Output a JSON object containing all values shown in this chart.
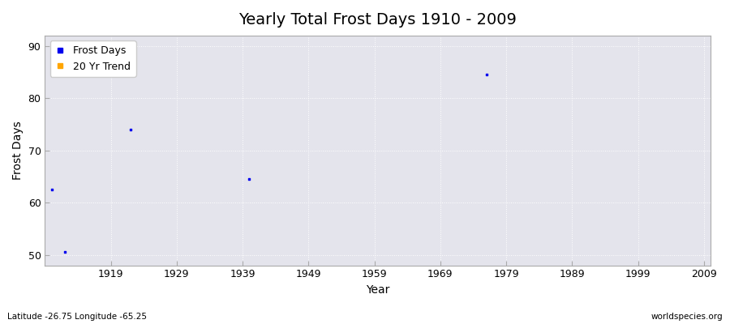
{
  "title": "Yearly Total Frost Days 1910 - 2009",
  "xlabel": "Year",
  "ylabel": "Frost Days",
  "xlim": [
    1909,
    2010
  ],
  "ylim": [
    48,
    92
  ],
  "yticks": [
    50,
    60,
    70,
    80,
    90
  ],
  "xticks": [
    1919,
    1929,
    1939,
    1949,
    1959,
    1969,
    1979,
    1989,
    1999,
    2009
  ],
  "frost_days_x": [
    1910,
    1912,
    1922,
    1940,
    1976
  ],
  "frost_days_y": [
    62.5,
    50.5,
    74,
    64.5,
    84.5
  ],
  "point_color": "#0000ee",
  "point_size": 3,
  "figure_bg_color": "#ffffff",
  "plot_bg_color": "#e4e4ec",
  "grid_color": "#ffffff",
  "grid_style": ":",
  "legend_frost_label": "Frost Days",
  "legend_trend_label": "20 Yr Trend",
  "legend_frost_color": "#0000ee",
  "legend_trend_color": "#ffa500",
  "subtitle_left": "Latitude -26.75 Longitude -65.25",
  "subtitle_right": "worldspecies.org",
  "title_fontsize": 14,
  "axis_label_fontsize": 10,
  "tick_fontsize": 9,
  "spine_color": "#aaaaaa"
}
